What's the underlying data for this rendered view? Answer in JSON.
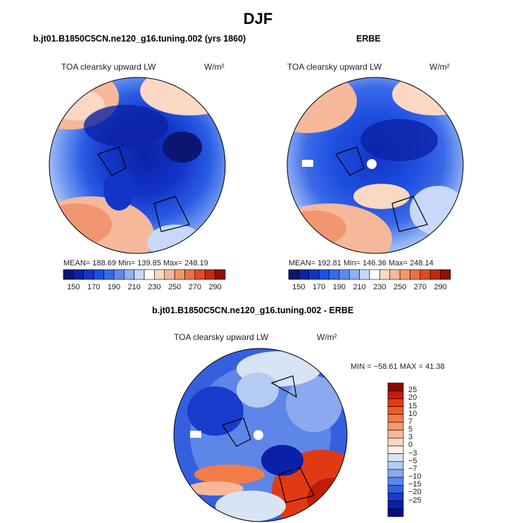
{
  "title": "DJF",
  "panels": [
    {
      "title": "b.jt01.B1850C5CN.ne120_g16.tuning.002 (yrs 1860)",
      "variable": "TOA clearsky upward LW",
      "units": "W/m²",
      "stats": "MEAN= 188.69  Min= 139.85  Max= 248.19"
    },
    {
      "title": "ERBE",
      "variable": "TOA clearsky upward LW",
      "units": "W/m²",
      "stats": "MEAN= 192.81  Min= 146.36  Max= 248.14"
    },
    {
      "title": "b.jt01.B1850C5CN.ne120_g16.tuning.002 - ERBE",
      "variable": "TOA clearsky upward LW",
      "units": "W/m²",
      "stats": "MIN = −58.61 MAX =  41.38"
    }
  ],
  "chart_data": [
    {
      "type": "heatmap",
      "projection": "north-polar-stereographic",
      "min": 139.85,
      "max": 248.19,
      "mean": 188.69,
      "colorbar": {
        "orientation": "horizontal",
        "tick_labels": [
          "150",
          "170",
          "190",
          "210",
          "230",
          "250",
          "270",
          "290"
        ],
        "colors": [
          "#0a1670",
          "#0d22a6",
          "#1234c8",
          "#1f4fe0",
          "#3a6ae8",
          "#5f8aee",
          "#8fb0f4",
          "#c8d8f8",
          "#ffffff",
          "#fbd8c4",
          "#f6b89a",
          "#f19670",
          "#ec7048",
          "#e04a26",
          "#c02a10",
          "#8c1204"
        ]
      }
    },
    {
      "type": "heatmap",
      "projection": "north-polar-stereographic",
      "min": 146.36,
      "max": 248.14,
      "mean": 192.81,
      "colorbar": {
        "orientation": "horizontal",
        "tick_labels": [
          "150",
          "170",
          "190",
          "210",
          "230",
          "250",
          "270",
          "290"
        ],
        "colors": [
          "#0a1670",
          "#0d22a6",
          "#1234c8",
          "#1f4fe0",
          "#3a6ae8",
          "#5f8aee",
          "#8fb0f4",
          "#c8d8f8",
          "#ffffff",
          "#fbd8c4",
          "#f6b89a",
          "#f19670",
          "#ec7048",
          "#e04a26",
          "#c02a10",
          "#8c1204"
        ]
      }
    },
    {
      "type": "heatmap",
      "projection": "north-polar-stereographic",
      "min": -58.61,
      "max": 41.38,
      "colorbar": {
        "orientation": "vertical",
        "tick_labels": [
          "25",
          "20",
          "15",
          "10",
          "7",
          "5",
          "3",
          "0",
          "−3",
          "−5",
          "−7",
          "−10",
          "−15",
          "−20",
          "−25"
        ],
        "colors": [
          "#8c0a04",
          "#c01c08",
          "#e03a14",
          "#f05a26",
          "#f27c48",
          "#f59a70",
          "#f8b898",
          "#fbd6c2",
          "#fdf0e6",
          "#d8e4f6",
          "#b4cbf2",
          "#8aa9ee",
          "#5e86e8",
          "#3460e0",
          "#1a3ccc",
          "#0b20a8",
          "#050f78"
        ]
      }
    }
  ]
}
